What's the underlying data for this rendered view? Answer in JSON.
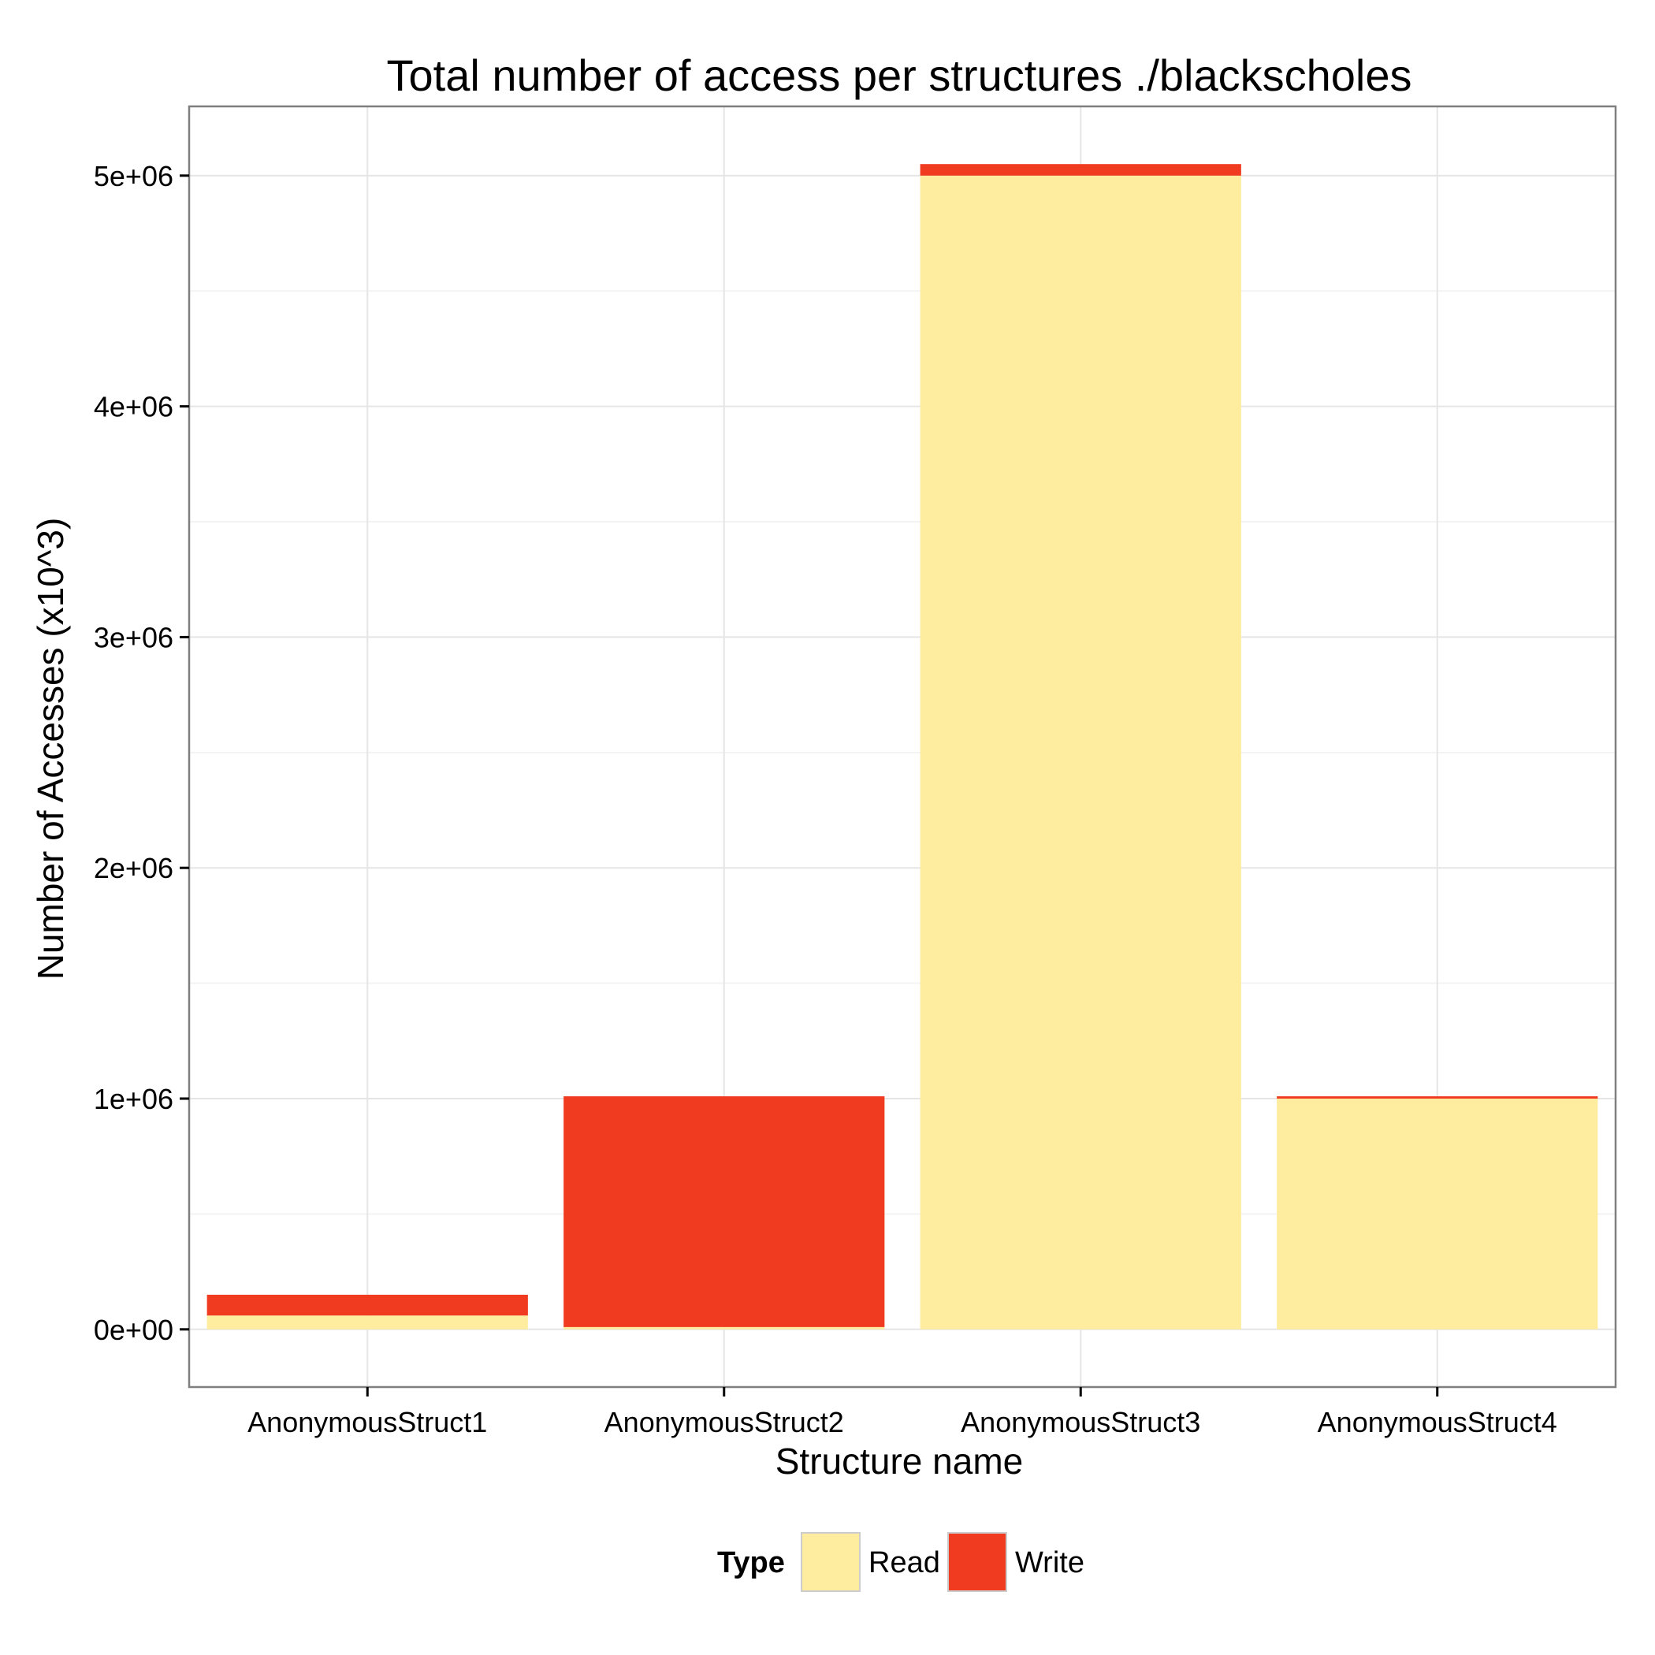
{
  "chart_data": {
    "type": "bar",
    "stacked": true,
    "title": "Total number of access per structures ./blackscholes",
    "xlabel": "Structure name",
    "ylabel": "Number of Accesses (x10^3)",
    "categories": [
      "AnonymousStruct1",
      "AnonymousStruct2",
      "AnonymousStruct3",
      "AnonymousStruct4"
    ],
    "series": [
      {
        "name": "Read",
        "color": "#FEEC9F",
        "values": [
          60000,
          10000,
          5000000,
          1000000
        ]
      },
      {
        "name": "Write",
        "color": "#F03B20",
        "values": [
          90000,
          1000000,
          50000,
          10000
        ]
      }
    ],
    "ylim": [
      -250000,
      5300000
    ],
    "yticks": [
      0,
      1000000,
      2000000,
      3000000,
      4000000,
      5000000
    ],
    "ytick_labels": [
      "0e+00",
      "1e+06",
      "2e+06",
      "3e+06",
      "4e+06",
      "5e+06"
    ],
    "legend": {
      "title": "Type",
      "position": "bottom"
    },
    "grid": true
  }
}
